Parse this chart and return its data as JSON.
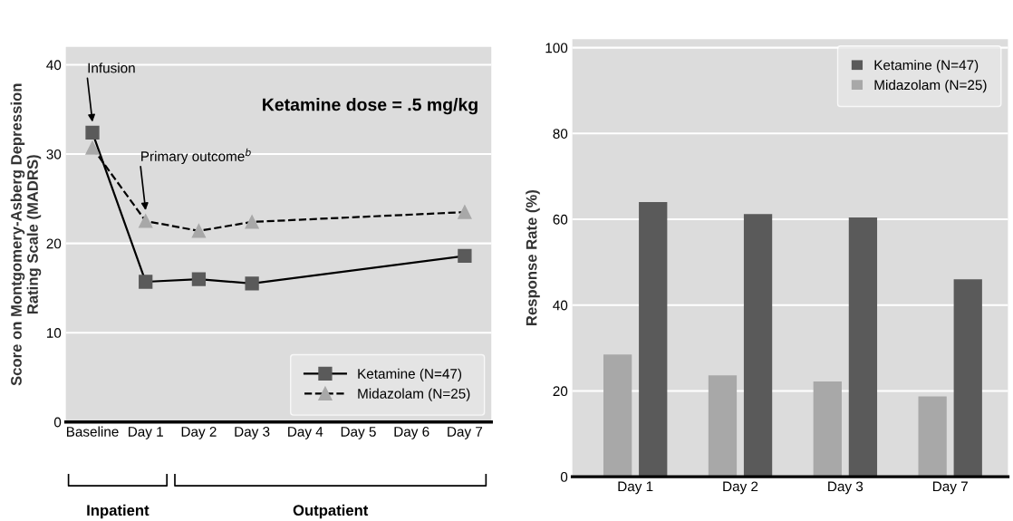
{
  "chart_data": [
    {
      "type": "line",
      "ylabel": "Score on Montgomery-Asberg Depression\nRating Scale (MADRS)",
      "categories": [
        "Baseline",
        "Day 1",
        "Day 2",
        "Day 3",
        "Day 4",
        "Day 5",
        "Day 6",
        "Day 7"
      ],
      "series": [
        {
          "name": "Ketamine (N=47)",
          "color": "#5a5a5a",
          "marker": "square",
          "line_style": "solid",
          "values": [
            32.4,
            15.7,
            16.0,
            15.5,
            null,
            null,
            null,
            18.6
          ]
        },
        {
          "name": "Midazolam (N=25)",
          "color": "#a8a8a8",
          "marker": "triangle",
          "line_style": "dashed",
          "values": [
            30.7,
            22.5,
            21.4,
            22.4,
            null,
            null,
            null,
            23.5
          ]
        }
      ],
      "ylim": [
        0,
        42
      ],
      "yticks": [
        0,
        10,
        20,
        30,
        40
      ],
      "grid": "y",
      "legend": "bottom right",
      "annotations": [
        "Infusion",
        "Primary outcome$^{b}$",
        "Ketamine dose = .5 mg/kg",
        "Inpatient",
        "Outpatient"
      ]
    },
    {
      "type": "bar",
      "ylabel": "Response Rate (%)",
      "categories": [
        "Day 1",
        "Day 2",
        "Day 3",
        "Day 7"
      ],
      "series": [
        {
          "name": "Ketamine (N=47)",
          "color": "#5a5a5a",
          "values": [
            64,
            61.2,
            60.4,
            46
          ]
        },
        {
          "name": "Midazolam (N=25)",
          "color": "#a8a8a8",
          "values": [
            28.5,
            23.6,
            22.2,
            18.7
          ]
        }
      ],
      "ylim": [
        0,
        102
      ],
      "yticks": [
        0,
        20,
        40,
        60,
        80,
        100
      ],
      "grid": "y",
      "legend": "top right"
    }
  ]
}
